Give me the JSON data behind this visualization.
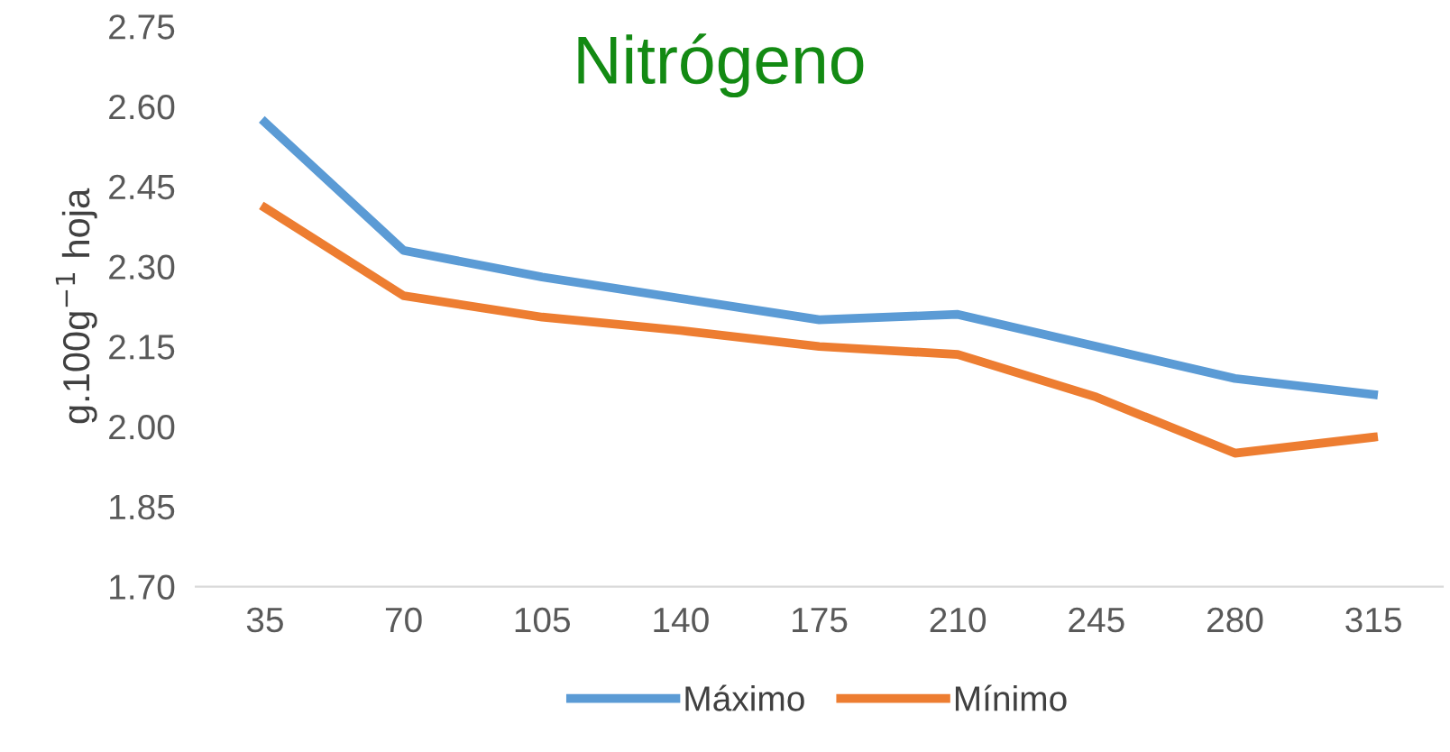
{
  "chart_data": {
    "type": "line",
    "title": "Nitrógeno",
    "ylabel": "g.100g$^{−1}$ hoja",
    "categories": [
      "35",
      "70",
      "105",
      "140",
      "175",
      "210",
      "245",
      "280",
      "315"
    ],
    "series": [
      {
        "name": "Máximo",
        "color": "#5b9bd5",
        "values": [
          2.57,
          2.33,
          2.28,
          2.24,
          2.2,
          2.21,
          2.15,
          2.09,
          2.06
        ]
      },
      {
        "name": "Mínimo",
        "color": "#ed7d31",
        "values": [
          2.41,
          2.245,
          2.205,
          2.18,
          2.15,
          2.135,
          2.055,
          1.95,
          1.98
        ]
      }
    ],
    "ylim": [
      1.7,
      2.75
    ],
    "yticks": [
      {
        "value": 1.7,
        "label": "1.70"
      },
      {
        "value": 1.85,
        "label": "1.85"
      },
      {
        "value": 2.0,
        "label": "2.00"
      },
      {
        "value": 2.15,
        "label": "2.15"
      },
      {
        "value": 2.3,
        "label": "2.30"
      },
      {
        "value": 2.45,
        "label": "2.45"
      },
      {
        "value": 2.6,
        "label": "2.60"
      },
      {
        "value": 2.75,
        "label": "2.75"
      }
    ],
    "grid": false,
    "legend": "bottom",
    "marker": "none",
    "line_style": "solid"
  }
}
